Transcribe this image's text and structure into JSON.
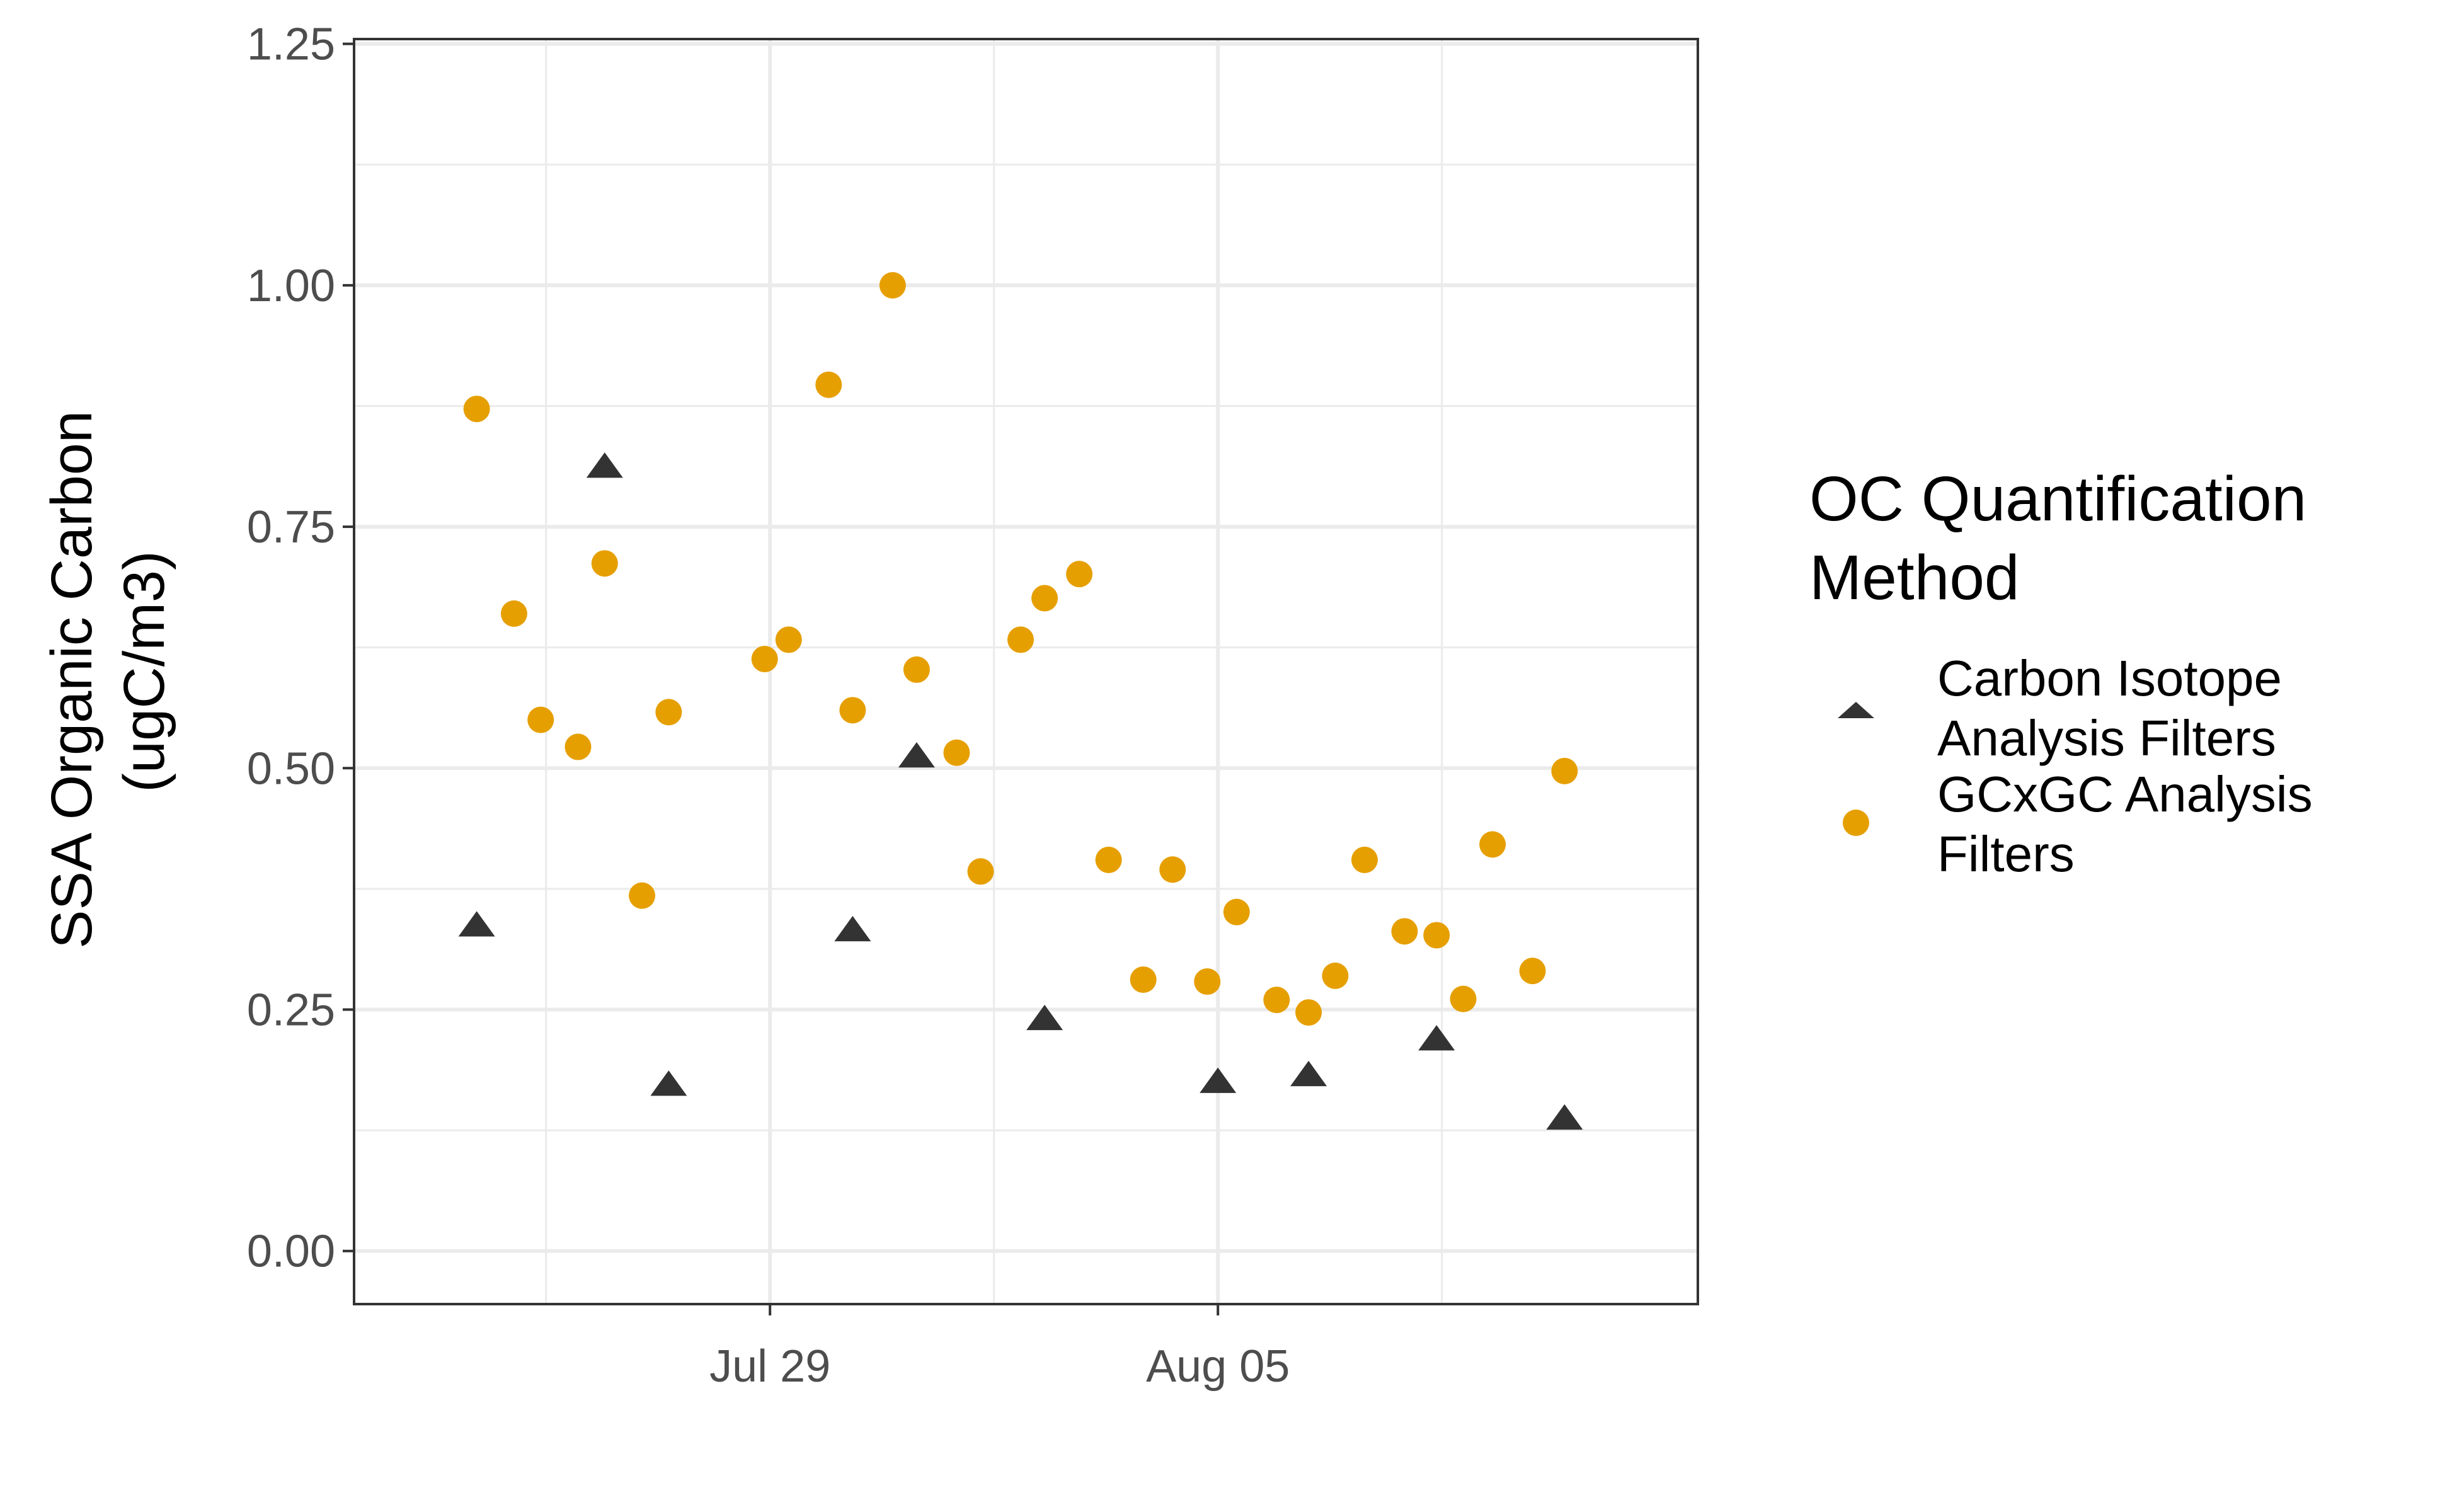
{
  "chart_data": {
    "type": "scatter",
    "xlabel": "",
    "ylabel_lines": [
      "SSA Organic Carbon",
      "(ugC/m3)"
    ],
    "xlim": [
      "2024-07-22T12:00",
      "2024-08-12T12:00"
    ],
    "ylim": [
      -0.055,
      1.255
    ],
    "x_ticks": [
      {
        "date": "2024-07-29",
        "label": "Jul 29"
      },
      {
        "date": "2024-08-05",
        "label": "Aug 05"
      }
    ],
    "x_minor_dates": [
      "2024-07-25T12:00",
      "2024-08-01T12:00",
      "2024-08-08T12:00"
    ],
    "y_ticks": [
      {
        "value": 0.0,
        "label": "0.00"
      },
      {
        "value": 0.25,
        "label": "0.25"
      },
      {
        "value": 0.5,
        "label": "0.50"
      },
      {
        "value": 0.75,
        "label": "0.75"
      },
      {
        "value": 1.0,
        "label": "1.00"
      },
      {
        "value": 1.25,
        "label": "1.25"
      }
    ],
    "y_minor": [
      0.125,
      0.375,
      0.625,
      0.875,
      1.125
    ],
    "grid": true,
    "legend": {
      "position": "right",
      "title_lines": [
        "OC Quantification",
        "Method"
      ],
      "entries": [
        {
          "series": 0,
          "label_lines": [
            "Carbon Isotope",
            "Analysis Filters"
          ]
        },
        {
          "series": 1,
          "label_lines": [
            "GCxGC Analysis",
            "Filters"
          ]
        }
      ]
    },
    "series": [
      {
        "name": "Carbon Isotope Analysis Filters",
        "marker": "triangle",
        "color": "#333333",
        "points": [
          {
            "x": "2024-07-24T10:00",
            "y": 0.335
          },
          {
            "x": "2024-07-26T10:00",
            "y": 0.81
          },
          {
            "x": "2024-07-27T10:00",
            "y": 0.17
          },
          {
            "x": "2024-07-30T07:00",
            "y": 0.33
          },
          {
            "x": "2024-07-31T07:00",
            "y": 0.51
          },
          {
            "x": "2024-08-02T07:00",
            "y": 0.238
          },
          {
            "x": "2024-08-05T00:00",
            "y": 0.173
          },
          {
            "x": "2024-08-06T10:00",
            "y": 0.18
          },
          {
            "x": "2024-08-08T10:00",
            "y": 0.217
          },
          {
            "x": "2024-08-10T10:00",
            "y": 0.135
          }
        ]
      },
      {
        "name": "GCxGC Analysis Filters",
        "marker": "circle",
        "color": "#E69F00",
        "points": [
          {
            "x": "2024-07-24T10:00",
            "y": 0.872
          },
          {
            "x": "2024-07-25T00:00",
            "y": 0.66
          },
          {
            "x": "2024-07-25T10:00",
            "y": 0.55
          },
          {
            "x": "2024-07-26T00:00",
            "y": 0.522
          },
          {
            "x": "2024-07-26T10:00",
            "y": 0.712
          },
          {
            "x": "2024-07-27T00:00",
            "y": 0.368
          },
          {
            "x": "2024-07-27T10:00",
            "y": 0.558
          },
          {
            "x": "2024-07-28T22:00",
            "y": 0.613
          },
          {
            "x": "2024-07-29T07:00",
            "y": 0.633
          },
          {
            "x": "2024-07-29T22:00",
            "y": 0.897
          },
          {
            "x": "2024-07-30T07:00",
            "y": 0.56
          },
          {
            "x": "2024-07-30T22:00",
            "y": 1.0
          },
          {
            "x": "2024-07-31T07:00",
            "y": 0.602
          },
          {
            "x": "2024-07-31T22:00",
            "y": 0.516
          },
          {
            "x": "2024-08-01T07:00",
            "y": 0.393
          },
          {
            "x": "2024-08-01T22:00",
            "y": 0.633
          },
          {
            "x": "2024-08-02T07:00",
            "y": 0.676
          },
          {
            "x": "2024-08-02T20:00",
            "y": 0.701
          },
          {
            "x": "2024-08-03T07:00",
            "y": 0.405
          },
          {
            "x": "2024-08-03T20:00",
            "y": 0.281
          },
          {
            "x": "2024-08-04T07:00",
            "y": 0.395
          },
          {
            "x": "2024-08-04T20:00",
            "y": 0.279
          },
          {
            "x": "2024-08-05T07:00",
            "y": 0.351
          },
          {
            "x": "2024-08-05T22:00",
            "y": 0.26
          },
          {
            "x": "2024-08-06T10:00",
            "y": 0.247
          },
          {
            "x": "2024-08-06T20:00",
            "y": 0.285
          },
          {
            "x": "2024-08-07T07:00",
            "y": 0.405
          },
          {
            "x": "2024-08-07T22:00",
            "y": 0.331
          },
          {
            "x": "2024-08-08T10:00",
            "y": 0.327
          },
          {
            "x": "2024-08-08T20:00",
            "y": 0.261
          },
          {
            "x": "2024-08-09T07:00",
            "y": 0.421
          },
          {
            "x": "2024-08-09T22:00",
            "y": 0.29
          },
          {
            "x": "2024-08-10T10:00",
            "y": 0.497
          }
        ]
      }
    ]
  }
}
